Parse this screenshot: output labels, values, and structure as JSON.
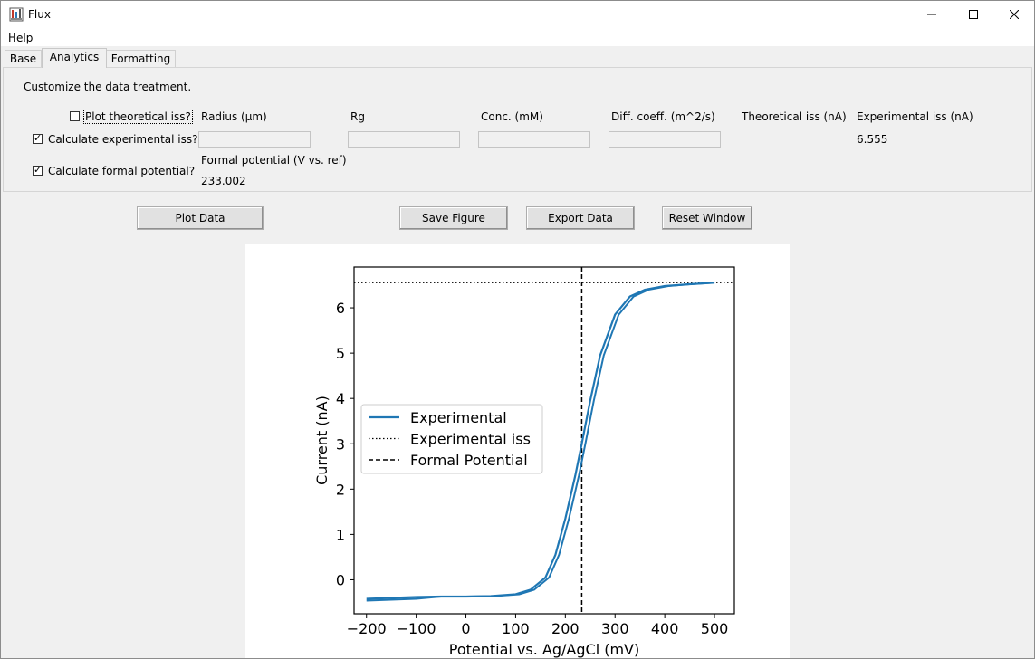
{
  "window": {
    "title": "Flux"
  },
  "menu": {
    "help": "Help"
  },
  "tabs": [
    "Base",
    "Analytics",
    "Formatting"
  ],
  "analytics": {
    "description": "Customize the data treatment.",
    "checkboxes": {
      "plot_theoretical": {
        "label": "Plot theoretical iss?",
        "checked": false
      },
      "calc_experimental": {
        "label": "Calculate experimental iss?",
        "checked": true
      },
      "calc_formal": {
        "label": "Calculate formal potential?",
        "checked": true
      }
    },
    "fields": {
      "radius": {
        "label": "Radius (μm)",
        "value": ""
      },
      "rg": {
        "label": "Rg",
        "value": ""
      },
      "conc": {
        "label": "Conc. (mM)",
        "value": ""
      },
      "diff": {
        "label": "Diff. coeff. (m^2/s)",
        "value": ""
      }
    },
    "theoretical_iss": {
      "label": "Theoretical iss (nA)",
      "value": ""
    },
    "experimental_iss": {
      "label": "Experimental iss (nA)",
      "value": "6.555"
    },
    "formal_potential": {
      "label": "Formal potential (V vs. ref)",
      "value": "233.002"
    }
  },
  "buttons": {
    "plot": "Plot Data",
    "save": "Save Figure",
    "export": "Export Data",
    "reset": "Reset Window"
  },
  "chart_data": {
    "type": "line",
    "xlabel": "Potential vs. Ag/AgCl (mV)",
    "ylabel": "Current (nA)",
    "xlim": [
      -225,
      540
    ],
    "ylim": [
      -0.75,
      6.9
    ],
    "xticks": [
      -200,
      -100,
      0,
      100,
      200,
      300,
      400,
      500
    ],
    "xtick_labels": [
      "−200",
      "−100",
      "0",
      "100",
      "200",
      "300",
      "400",
      "500"
    ],
    "yticks": [
      0,
      1,
      2,
      3,
      4,
      5,
      6
    ],
    "ytick_labels": [
      "0",
      "1",
      "2",
      "3",
      "4",
      "5",
      "6"
    ],
    "legend": [
      "Experimental",
      "Experimental iss",
      "Formal Potential"
    ],
    "legend_position": "center-left",
    "series": [
      {
        "name": "Experimental",
        "color": "#1f77b4",
        "x": [
          -200,
          -150,
          -100,
          -50,
          0,
          50,
          100,
          130,
          160,
          180,
          200,
          220,
          233,
          250,
          270,
          300,
          330,
          360,
          400,
          450,
          500
        ],
        "y": [
          -0.42,
          -0.4,
          -0.38,
          -0.37,
          -0.37,
          -0.36,
          -0.32,
          -0.22,
          0.05,
          0.55,
          1.35,
          2.3,
          3.0,
          3.95,
          4.95,
          5.85,
          6.25,
          6.4,
          6.48,
          6.52,
          6.555
        ]
      }
    ],
    "iss": 6.555,
    "formal_potential": 233.002
  }
}
